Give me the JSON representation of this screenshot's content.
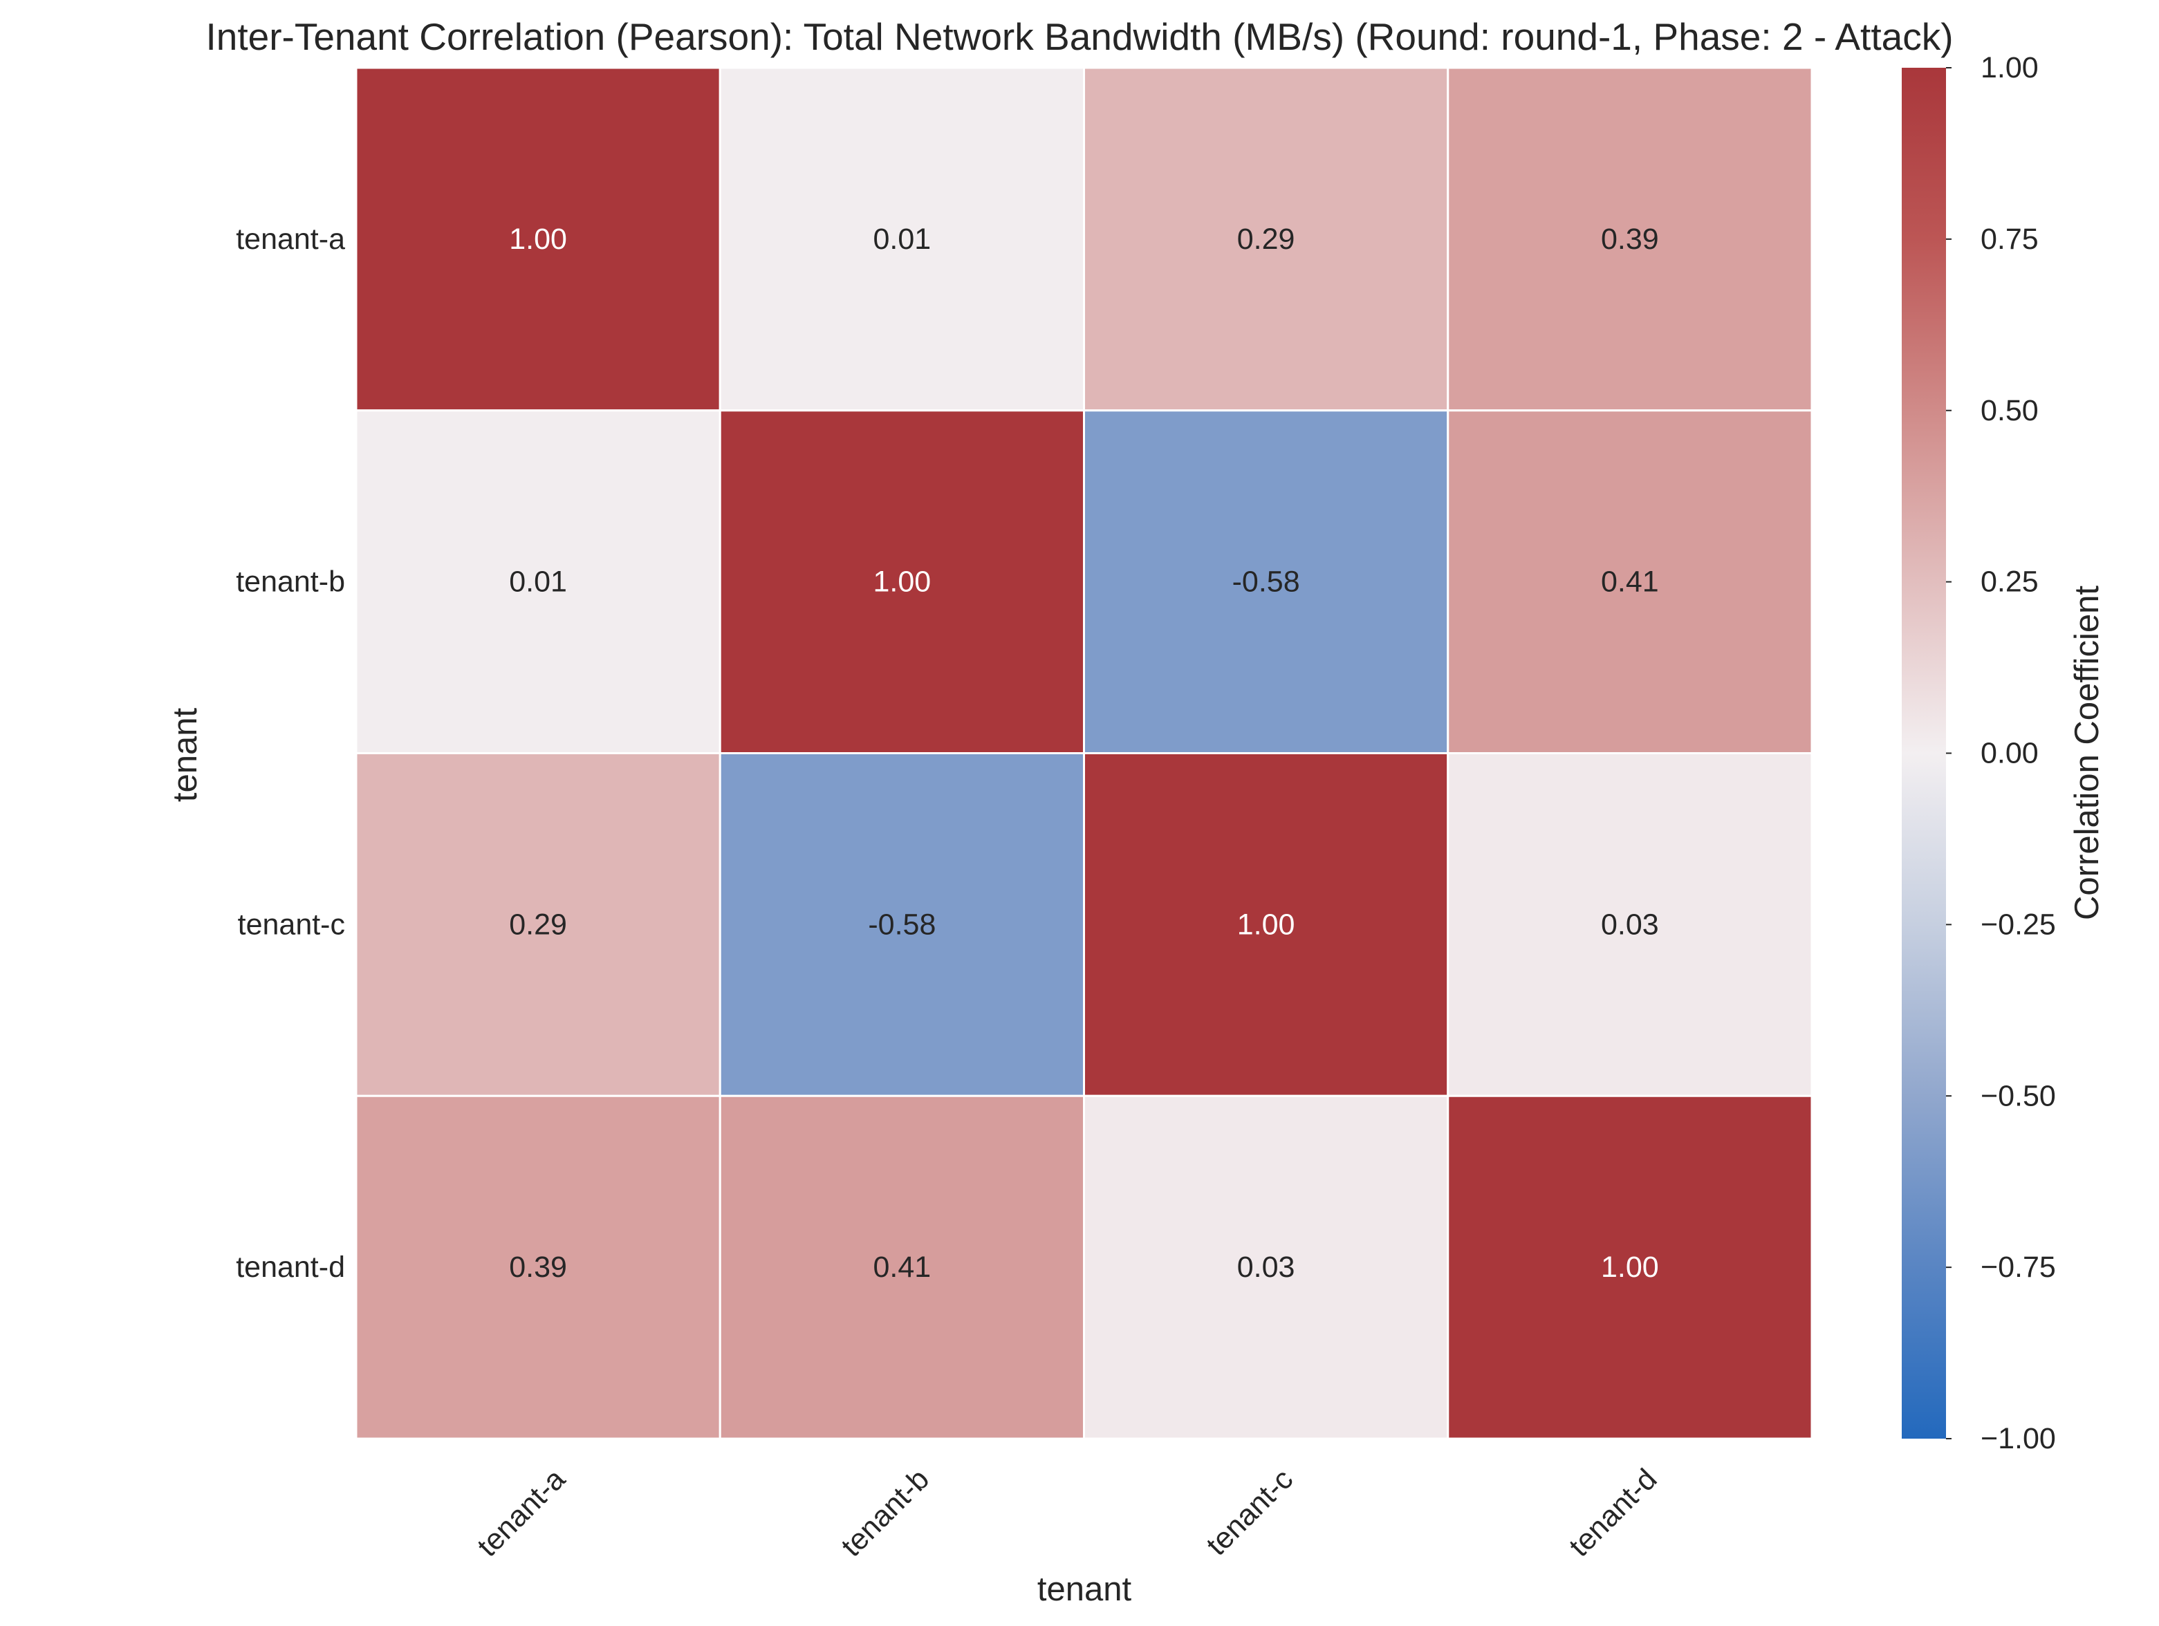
{
  "chart_data": {
    "type": "heatmap",
    "title": "Inter-Tenant Correlation (Pearson): Total Network Bandwidth (MB/s) (Round: round-1, Phase: 2 - Attack)",
    "xlabel": "tenant",
    "ylabel": "tenant",
    "x_categories": [
      "tenant-a",
      "tenant-b",
      "tenant-c",
      "tenant-d"
    ],
    "y_categories": [
      "tenant-a",
      "tenant-b",
      "tenant-c",
      "tenant-d"
    ],
    "values": [
      [
        1.0,
        0.01,
        0.29,
        0.39
      ],
      [
        0.01,
        1.0,
        -0.58,
        0.41
      ],
      [
        0.29,
        -0.58,
        1.0,
        0.03
      ],
      [
        0.39,
        0.41,
        0.03,
        1.0
      ]
    ],
    "value_labels": [
      [
        "1.00",
        "0.01",
        "0.29",
        "0.39"
      ],
      [
        "0.01",
        "1.00",
        "-0.58",
        "0.41"
      ],
      [
        "0.29",
        "-0.58",
        "1.00",
        "0.03"
      ],
      [
        "0.39",
        "0.41",
        "0.03",
        "1.00"
      ]
    ],
    "colorbar": {
      "label": "Correlation Coefficient",
      "range": [
        -1.0,
        1.0
      ],
      "ticks": [
        1.0,
        0.75,
        0.5,
        0.25,
        0.0,
        -0.25,
        -0.5,
        -0.75,
        -1.0
      ],
      "tick_labels": [
        "1.00",
        "0.75",
        "0.50",
        "0.25",
        "0.00",
        "−0.25",
        "−0.50",
        "−0.75",
        "−1.00"
      ],
      "colormap": "vlag",
      "colormap_stops": [
        {
          "value": -1.0,
          "color": "#2369bd"
        },
        {
          "value": -0.75,
          "color": "#5985c3"
        },
        {
          "value": -0.5,
          "color": "#91a7cd"
        },
        {
          "value": -0.25,
          "color": "#c6cfe0"
        },
        {
          "value": 0.0,
          "color": "#f3eff1"
        },
        {
          "value": 0.25,
          "color": "#e2bebe"
        },
        {
          "value": 0.5,
          "color": "#d08b89"
        },
        {
          "value": 0.75,
          "color": "#bc5655"
        },
        {
          "value": 1.0,
          "color": "#a9373b"
        }
      ]
    },
    "colors": {
      "text_dark": "#262626",
      "text_light": "#ffffff",
      "cell_border": "#ffffff"
    },
    "grid": false
  }
}
